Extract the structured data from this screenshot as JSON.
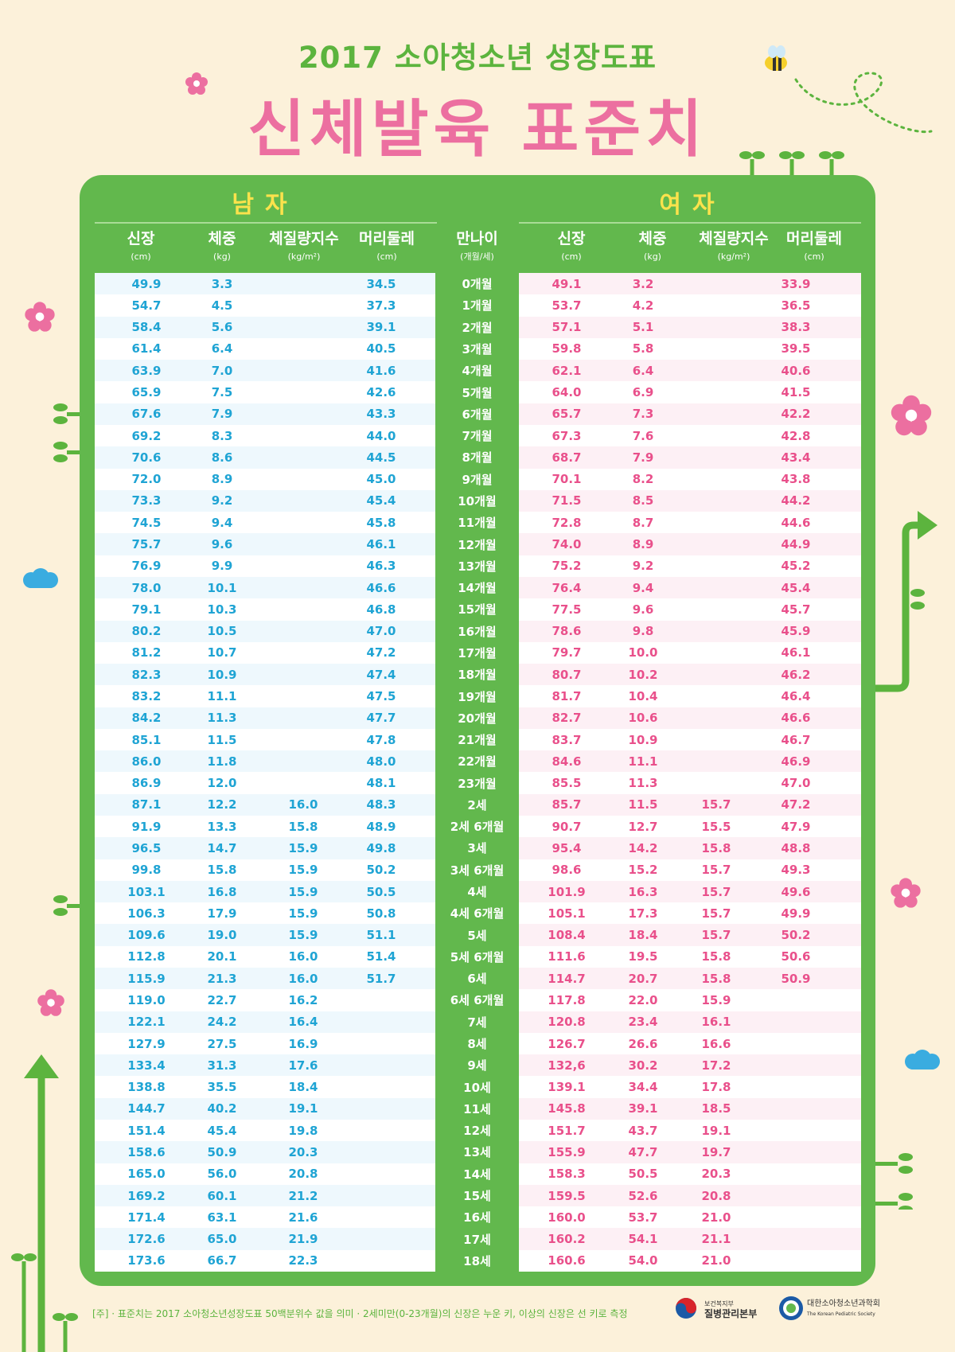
{
  "header": {
    "subtitle": "2017 소아청소년 성장도표",
    "title": "신체발육 표준치"
  },
  "sections": {
    "male": "남자",
    "female": "여자"
  },
  "columns": {
    "male": [
      {
        "title": "신장",
        "unit": "(cm)"
      },
      {
        "title": "체중",
        "unit": "(kg)"
      },
      {
        "title": "체질량지수",
        "unit": "(kg/m²)"
      },
      {
        "title": "머리둘레",
        "unit": "(cm)"
      }
    ],
    "age": {
      "title": "만나이",
      "unit": "(개월/세)"
    },
    "female": [
      {
        "title": "신장",
        "unit": "(cm)"
      },
      {
        "title": "체중",
        "unit": "(kg)"
      },
      {
        "title": "체질량지수",
        "unit": "(kg/m²)"
      },
      {
        "title": "머리둘레",
        "unit": "(cm)"
      }
    ]
  },
  "rows": [
    {
      "age": "0개월",
      "m": [
        "49.9",
        "3.3",
        "",
        "34.5"
      ],
      "f": [
        "49.1",
        "3.2",
        "",
        "33.9"
      ]
    },
    {
      "age": "1개월",
      "m": [
        "54.7",
        "4.5",
        "",
        "37.3"
      ],
      "f": [
        "53.7",
        "4.2",
        "",
        "36.5"
      ]
    },
    {
      "age": "2개월",
      "m": [
        "58.4",
        "5.6",
        "",
        "39.1"
      ],
      "f": [
        "57.1",
        "5.1",
        "",
        "38.3"
      ]
    },
    {
      "age": "3개월",
      "m": [
        "61.4",
        "6.4",
        "",
        "40.5"
      ],
      "f": [
        "59.8",
        "5.8",
        "",
        "39.5"
      ]
    },
    {
      "age": "4개월",
      "m": [
        "63.9",
        "7.0",
        "",
        "41.6"
      ],
      "f": [
        "62.1",
        "6.4",
        "",
        "40.6"
      ]
    },
    {
      "age": "5개월",
      "m": [
        "65.9",
        "7.5",
        "",
        "42.6"
      ],
      "f": [
        "64.0",
        "6.9",
        "",
        "41.5"
      ]
    },
    {
      "age": "6개월",
      "m": [
        "67.6",
        "7.9",
        "",
        "43.3"
      ],
      "f": [
        "65.7",
        "7.3",
        "",
        "42.2"
      ]
    },
    {
      "age": "7개월",
      "m": [
        "69.2",
        "8.3",
        "",
        "44.0"
      ],
      "f": [
        "67.3",
        "7.6",
        "",
        "42.8"
      ]
    },
    {
      "age": "8개월",
      "m": [
        "70.6",
        "8.6",
        "",
        "44.5"
      ],
      "f": [
        "68.7",
        "7.9",
        "",
        "43.4"
      ]
    },
    {
      "age": "9개월",
      "m": [
        "72.0",
        "8.9",
        "",
        "45.0"
      ],
      "f": [
        "70.1",
        "8.2",
        "",
        "43.8"
      ]
    },
    {
      "age": "10개월",
      "m": [
        "73.3",
        "9.2",
        "",
        "45.4"
      ],
      "f": [
        "71.5",
        "8.5",
        "",
        "44.2"
      ]
    },
    {
      "age": "11개월",
      "m": [
        "74.5",
        "9.4",
        "",
        "45.8"
      ],
      "f": [
        "72.8",
        "8.7",
        "",
        "44.6"
      ]
    },
    {
      "age": "12개월",
      "m": [
        "75.7",
        "9.6",
        "",
        "46.1"
      ],
      "f": [
        "74.0",
        "8.9",
        "",
        "44.9"
      ]
    },
    {
      "age": "13개월",
      "m": [
        "76.9",
        "9.9",
        "",
        "46.3"
      ],
      "f": [
        "75.2",
        "9.2",
        "",
        "45.2"
      ]
    },
    {
      "age": "14개월",
      "m": [
        "78.0",
        "10.1",
        "",
        "46.6"
      ],
      "f": [
        "76.4",
        "9.4",
        "",
        "45.4"
      ]
    },
    {
      "age": "15개월",
      "m": [
        "79.1",
        "10.3",
        "",
        "46.8"
      ],
      "f": [
        "77.5",
        "9.6",
        "",
        "45.7"
      ]
    },
    {
      "age": "16개월",
      "m": [
        "80.2",
        "10.5",
        "",
        "47.0"
      ],
      "f": [
        "78.6",
        "9.8",
        "",
        "45.9"
      ]
    },
    {
      "age": "17개월",
      "m": [
        "81.2",
        "10.7",
        "",
        "47.2"
      ],
      "f": [
        "79.7",
        "10.0",
        "",
        "46.1"
      ]
    },
    {
      "age": "18개월",
      "m": [
        "82.3",
        "10.9",
        "",
        "47.4"
      ],
      "f": [
        "80.7",
        "10.2",
        "",
        "46.2"
      ]
    },
    {
      "age": "19개월",
      "m": [
        "83.2",
        "11.1",
        "",
        "47.5"
      ],
      "f": [
        "81.7",
        "10.4",
        "",
        "46.4"
      ]
    },
    {
      "age": "20개월",
      "m": [
        "84.2",
        "11.3",
        "",
        "47.7"
      ],
      "f": [
        "82.7",
        "10.6",
        "",
        "46.6"
      ]
    },
    {
      "age": "21개월",
      "m": [
        "85.1",
        "11.5",
        "",
        "47.8"
      ],
      "f": [
        "83.7",
        "10.9",
        "",
        "46.7"
      ]
    },
    {
      "age": "22개월",
      "m": [
        "86.0",
        "11.8",
        "",
        "48.0"
      ],
      "f": [
        "84.6",
        "11.1",
        "",
        "46.9"
      ]
    },
    {
      "age": "23개월",
      "m": [
        "86.9",
        "12.0",
        "",
        "48.1"
      ],
      "f": [
        "85.5",
        "11.3",
        "",
        "47.0"
      ]
    },
    {
      "age": "2세",
      "m": [
        "87.1",
        "12.2",
        "16.0",
        "48.3"
      ],
      "f": [
        "85.7",
        "11.5",
        "15.7",
        "47.2"
      ]
    },
    {
      "age": "2세 6개월",
      "m": [
        "91.9",
        "13.3",
        "15.8",
        "48.9"
      ],
      "f": [
        "90.7",
        "12.7",
        "15.5",
        "47.9"
      ]
    },
    {
      "age": "3세",
      "m": [
        "96.5",
        "14.7",
        "15.9",
        "49.8"
      ],
      "f": [
        "95.4",
        "14.2",
        "15.8",
        "48.8"
      ]
    },
    {
      "age": "3세 6개월",
      "m": [
        "99.8",
        "15.8",
        "15.9",
        "50.2"
      ],
      "f": [
        "98.6",
        "15.2",
        "15.7",
        "49.3"
      ]
    },
    {
      "age": "4세",
      "m": [
        "103.1",
        "16.8",
        "15.9",
        "50.5"
      ],
      "f": [
        "101.9",
        "16.3",
        "15.7",
        "49.6"
      ]
    },
    {
      "age": "4세 6개월",
      "m": [
        "106.3",
        "17.9",
        "15.9",
        "50.8"
      ],
      "f": [
        "105.1",
        "17.3",
        "15.7",
        "49.9"
      ]
    },
    {
      "age": "5세",
      "m": [
        "109.6",
        "19.0",
        "15.9",
        "51.1"
      ],
      "f": [
        "108.4",
        "18.4",
        "15.7",
        "50.2"
      ]
    },
    {
      "age": "5세 6개월",
      "m": [
        "112.8",
        "20.1",
        "16.0",
        "51.4"
      ],
      "f": [
        "111.6",
        "19.5",
        "15.8",
        "50.6"
      ]
    },
    {
      "age": "6세",
      "m": [
        "115.9",
        "21.3",
        "16.0",
        "51.7"
      ],
      "f": [
        "114.7",
        "20.7",
        "15.8",
        "50.9"
      ]
    },
    {
      "age": "6세 6개월",
      "m": [
        "119.0",
        "22.7",
        "16.2",
        ""
      ],
      "f": [
        "117.8",
        "22.0",
        "15.9",
        ""
      ]
    },
    {
      "age": "7세",
      "m": [
        "122.1",
        "24.2",
        "16.4",
        ""
      ],
      "f": [
        "120.8",
        "23.4",
        "16.1",
        ""
      ]
    },
    {
      "age": "8세",
      "m": [
        "127.9",
        "27.5",
        "16.9",
        ""
      ],
      "f": [
        "126.7",
        "26.6",
        "16.6",
        ""
      ]
    },
    {
      "age": "9세",
      "m": [
        "133.4",
        "31.3",
        "17.6",
        ""
      ],
      "f": [
        "132,6",
        "30.2",
        "17.2",
        ""
      ]
    },
    {
      "age": "10세",
      "m": [
        "138.8",
        "35.5",
        "18.4",
        ""
      ],
      "f": [
        "139.1",
        "34.4",
        "17.8",
        ""
      ]
    },
    {
      "age": "11세",
      "m": [
        "144.7",
        "40.2",
        "19.1",
        ""
      ],
      "f": [
        "145.8",
        "39.1",
        "18.5",
        ""
      ]
    },
    {
      "age": "12세",
      "m": [
        "151.4",
        "45.4",
        "19.8",
        ""
      ],
      "f": [
        "151.7",
        "43.7",
        "19.1",
        ""
      ]
    },
    {
      "age": "13세",
      "m": [
        "158.6",
        "50.9",
        "20.3",
        ""
      ],
      "f": [
        "155.9",
        "47.7",
        "19.7",
        ""
      ]
    },
    {
      "age": "14세",
      "m": [
        "165.0",
        "56.0",
        "20.8",
        ""
      ],
      "f": [
        "158.3",
        "50.5",
        "20.3",
        ""
      ]
    },
    {
      "age": "15세",
      "m": [
        "169.2",
        "60.1",
        "21.2",
        ""
      ],
      "f": [
        "159.5",
        "52.6",
        "20.8",
        ""
      ]
    },
    {
      "age": "16세",
      "m": [
        "171.4",
        "63.1",
        "21.6",
        ""
      ],
      "f": [
        "160.0",
        "53.7",
        "21.0",
        ""
      ]
    },
    {
      "age": "17세",
      "m": [
        "172.6",
        "65.0",
        "21.9",
        ""
      ],
      "f": [
        "160.2",
        "54.1",
        "21.1",
        ""
      ]
    },
    {
      "age": "18세",
      "m": [
        "173.6",
        "66.7",
        "22.3",
        ""
      ],
      "f": [
        "160.6",
        "54.0",
        "21.0",
        ""
      ]
    }
  ],
  "footnote": "[주] · 표준치는 2017 소아청소년성장도표 50백분위수 값을 의미 · 2세미만(0-23개월)의 신장은 누운 키, 이상의 신장은 선 키로 측정",
  "orgs": {
    "kcdc_small": "보건복지부",
    "kcdc_name": "질병관리본부",
    "kps_name": "대한소아청소년과학회",
    "kps_en": "The Korean Pediatric Society"
  },
  "colors": {
    "background": "#fcf1da",
    "green": "#62b84d",
    "title_pink": "#ec6fa0",
    "male_blue": "#1fa4d4",
    "female_pink": "#e9508b",
    "section_yellow": "#fbe24c"
  }
}
